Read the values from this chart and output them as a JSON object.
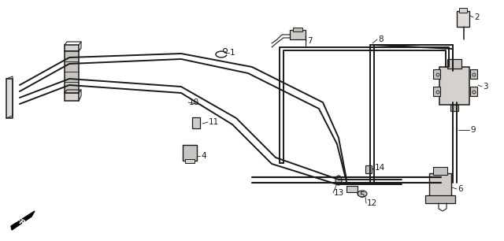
{
  "bg_color": "#f0ede8",
  "line_color": "#1a1a1a",
  "figsize": [
    6.4,
    3.06
  ],
  "dpi": 100,
  "xlim": [
    0,
    640
  ],
  "ylim": [
    306,
    0
  ],
  "tube_lw": 1.4,
  "bracket_lw": 1.1,
  "label_fs": 7.5
}
